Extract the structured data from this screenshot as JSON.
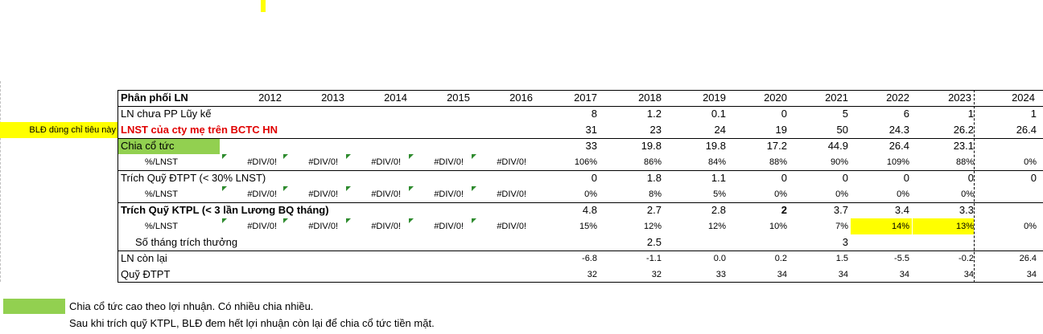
{
  "colors": {
    "green": "#92d050",
    "yellow": "#ffff00",
    "red": "#e00000"
  },
  "side_note": "BLĐ dùng chỉ tiêu này",
  "header": {
    "label": "Phân phối LN",
    "years": [
      "2012",
      "2013",
      "2014",
      "2015",
      "2016",
      "2017",
      "2018",
      "2019",
      "2020",
      "2021",
      "2022",
      "2023",
      "2024"
    ]
  },
  "rows": {
    "ln_chua_pp": {
      "label": "LN chưa PP Lũy kế",
      "values": [
        "8",
        "1.2",
        "0.1",
        "0",
        "5",
        "6",
        "1",
        "1"
      ]
    },
    "lnst": {
      "label": "LNST của cty mẹ trên BCTC HN",
      "values": [
        "31",
        "23",
        "24",
        "19",
        "50",
        "24.3",
        "26.2",
        "26.4"
      ]
    },
    "chia_co_tuc": {
      "label": "Chia cổ tức",
      "values": [
        "33",
        "19.8",
        "19.8",
        "17.2",
        "44.9",
        "26.4",
        "23.1",
        ""
      ]
    },
    "pct_lnst_1": {
      "label": "%/LNST",
      "div": [
        "#DIV/0!",
        "#DIV/0!",
        "#DIV/0!",
        "#DIV/0!",
        "#DIV/0!"
      ],
      "values": [
        "106%",
        "86%",
        "84%",
        "88%",
        "90%",
        "109%",
        "88%",
        "0%"
      ]
    },
    "quy_dtpt": {
      "label": "Trích Quỹ ĐTPT (< 30% LNST)",
      "values": [
        "0",
        "1.8",
        "1.1",
        "0",
        "0",
        "0",
        "0",
        "0"
      ]
    },
    "pct_lnst_2": {
      "label": "%/LNST",
      "div": [
        "#DIV/0!",
        "#DIV/0!",
        "#DIV/0!",
        "#DIV/0!",
        "#DIV/0!"
      ],
      "values": [
        "0%",
        "8%",
        "5%",
        "0%",
        "0%",
        "0%",
        "0%",
        ""
      ]
    },
    "quy_ktpl": {
      "label": "Trích Quỹ KTPL (< 3 lần Lương BQ tháng)",
      "values": [
        "4.8",
        "2.7",
        "2.8",
        "2",
        "3.7",
        "3.4",
        "3.3",
        ""
      ]
    },
    "pct_lnst_3": {
      "label": "%/LNST",
      "div": [
        "#DIV/0!",
        "#DIV/0!",
        "#DIV/0!",
        "#DIV/0!",
        "#DIV/0!"
      ],
      "values": [
        "15%",
        "12%",
        "12%",
        "10%",
        "7%",
        "14%",
        "13%",
        "0%"
      ]
    },
    "so_thang": {
      "label": "Số tháng trích thưởng",
      "values": [
        "",
        "2.5",
        "",
        "",
        "3",
        "",
        "",
        ""
      ]
    },
    "ln_con_lai": {
      "label": "LN còn lại",
      "values": [
        "-6.8",
        "-1.1",
        "0.0",
        "0.2",
        "1.5",
        "-5.5",
        "-0.2",
        "26.4"
      ]
    },
    "quy_dtpt_total": {
      "label": "Quỹ ĐTPT",
      "values": [
        "32",
        "32",
        "33",
        "34",
        "34",
        "34",
        "34",
        "34"
      ]
    }
  },
  "notes": [
    "Chia cổ tức cao theo lợi nhuận. Có nhiều chia nhiều.",
    "Sau khi trích quỹ KTPL, BLĐ đem hết lợi nhuận còn lại để chia cổ tức tiền mặt."
  ]
}
